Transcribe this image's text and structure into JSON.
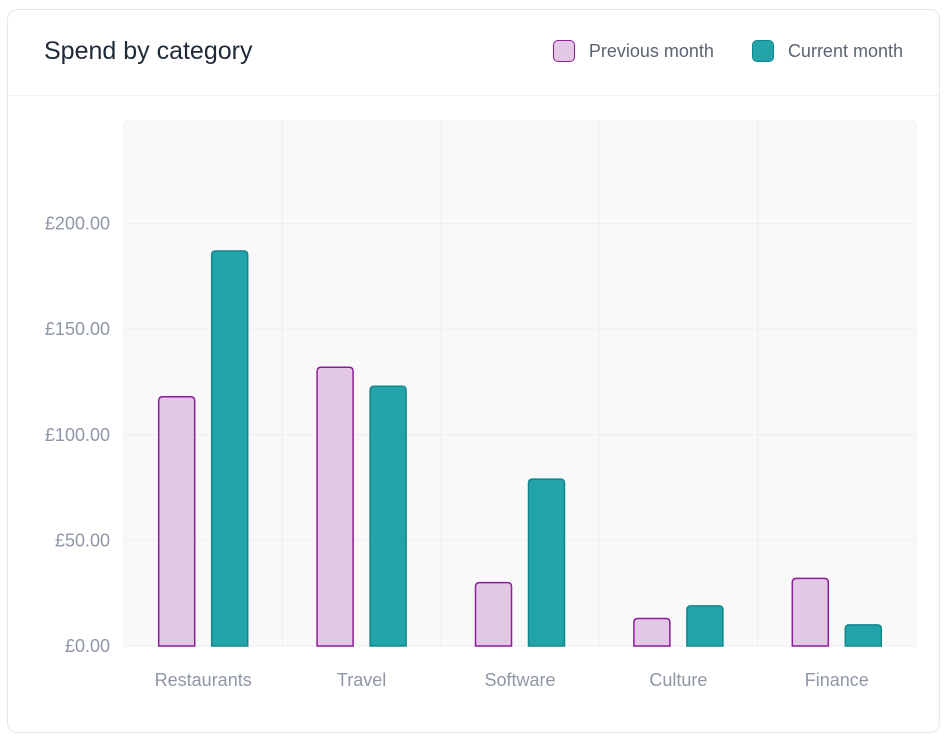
{
  "card": {
    "title": "Spend by category"
  },
  "chart_data": {
    "type": "bar",
    "title": "Spend by category",
    "categories": [
      "Restaurants",
      "Travel",
      "Software",
      "Culture",
      "Finance"
    ],
    "series": [
      {
        "name": "Previous month",
        "values": [
          118,
          132,
          30,
          13,
          32
        ],
        "fill": "#e3c8e6",
        "stroke": "#8b1d99"
      },
      {
        "name": "Current month",
        "values": [
          187,
          123,
          79,
          19,
          10
        ],
        "fill": "#23a4aa",
        "stroke": "#11868c"
      }
    ],
    "yticks": [
      "£0.00",
      "£50.00",
      "£100.00",
      "£150.00",
      "£200.00"
    ],
    "ytick_values": [
      0,
      50,
      100,
      150,
      200
    ],
    "ylim": [
      0,
      250
    ],
    "grid": true,
    "legend_position": "top-right"
  },
  "colors": {
    "plot_background": "#f9f9fa",
    "grid": "#eceef1"
  }
}
